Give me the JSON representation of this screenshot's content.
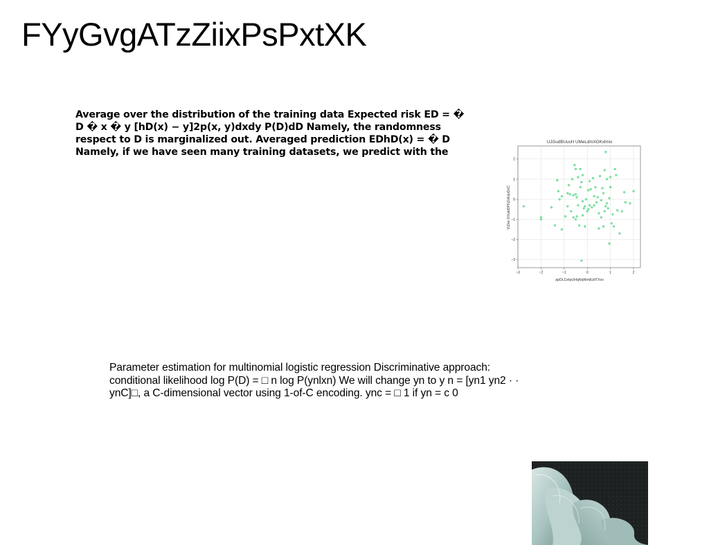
{
  "page": {
    "title": "FYyGvgATzZiixPsPxtXK"
  },
  "paragraphs": {
    "bold": "Average over the distribution of the training data Expected risk ED = � D � x � y [hD(x) − y]2p(x, y)dxdy P(D)dD Namely, the randomness respect to D is marginalized out. Averaged prediction EDhD(x) = � D Namely, if we have seen many training datasets, we predict with the",
    "plain": "Parameter estimation for multinomial logistic regression Discriminative approach: conditional likelihood log P(D) = □ n log P(ynlxn) We will change yn to y n = [yn1 yn2 · · ynC]□, a C-dimensional vector using 1-of-C encoding. ync = □ 1 if yn = c 0"
  },
  "chart_data": {
    "type": "scatter",
    "title": "UJGudBUucH UMeLdmXGKxlmix",
    "xlabel": "apDLCetpUHqNqNmdUdTXxv",
    "ylabel": "ViZrw IXXabDPhZoKqvDcC",
    "xlim": [
      -3,
      2.3
    ],
    "ylim": [
      -3.4,
      2.65
    ],
    "xticks": [
      -3,
      -2,
      -1,
      0,
      1,
      2
    ],
    "yticks": [
      -3,
      -2,
      -1,
      0,
      1,
      2
    ],
    "xtick_labels": [
      "−3",
      "−2",
      "−1",
      "0",
      "1",
      "2"
    ],
    "ytick_labels": [
      "−3",
      "−2",
      "−1",
      "0",
      "1",
      "2"
    ],
    "grid": true,
    "point_color": "#7ee0a0",
    "x": [
      -2.75,
      -2.0,
      -2.0,
      -1.55,
      -1.4,
      -1.3,
      -1.25,
      -1.2,
      -1.3,
      -1.1,
      -1.1,
      -0.95,
      -0.85,
      -0.85,
      -0.8,
      -0.75,
      -0.7,
      -0.65,
      -0.6,
      -0.6,
      -0.55,
      -0.5,
      -0.5,
      -0.5,
      -0.45,
      -0.45,
      -0.4,
      -0.4,
      -0.35,
      -0.3,
      -0.3,
      -0.25,
      -0.2,
      -0.2,
      -0.2,
      -0.15,
      -0.1,
      -0.1,
      -0.05,
      0.0,
      0.05,
      0.05,
      0.1,
      0.1,
      0.15,
      0.2,
      0.25,
      0.3,
      0.3,
      0.35,
      0.4,
      0.45,
      0.5,
      0.5,
      0.55,
      0.6,
      0.6,
      0.65,
      0.7,
      0.7,
      0.75,
      0.8,
      0.85,
      0.85,
      0.9,
      0.95,
      1.0,
      1.05,
      1.1,
      1.15,
      1.2,
      1.25,
      1.3,
      1.4,
      1.5,
      1.6,
      1.65,
      1.85,
      2.0,
      0.8,
      1.0,
      -0.25,
      0.75,
      0.95
    ],
    "y": [
      -0.35,
      -0.9,
      -1.0,
      -0.4,
      -1.3,
      0.95,
      0.4,
      0.0,
      0.95,
      0.15,
      -1.5,
      -0.85,
      0.3,
      -0.35,
      0.7,
      0.25,
      -0.6,
      1.0,
      -0.9,
      0.2,
      1.7,
      1.5,
      0.25,
      -1.0,
      0.1,
      -0.85,
      1.1,
      -0.3,
      -1.3,
      1.5,
      0.6,
      0.85,
      1.2,
      -0.1,
      -0.8,
      -0.45,
      -0.35,
      -1.35,
      0.0,
      -0.6,
      0.45,
      -0.5,
      0.9,
      -0.3,
      0.5,
      -0.4,
      1.05,
      0.15,
      -0.3,
      0.6,
      -0.15,
      0.1,
      -1.45,
      -0.7,
      1.15,
      -0.9,
      -0.05,
      0.55,
      0.3,
      -1.35,
      -0.6,
      -0.35,
      -0.2,
      1.0,
      -0.45,
      0.05,
      0.6,
      -1.2,
      -0.75,
      -1.35,
      1.5,
      1.2,
      -0.55,
      -1.7,
      -0.6,
      0.35,
      -0.15,
      -0.2,
      0.4,
      2.35,
      1.1,
      -3.05,
      1.45,
      -2.2
    ]
  },
  "photo": {
    "background_color": "#1e2121",
    "ribbon_color": "#a9c4c1"
  }
}
